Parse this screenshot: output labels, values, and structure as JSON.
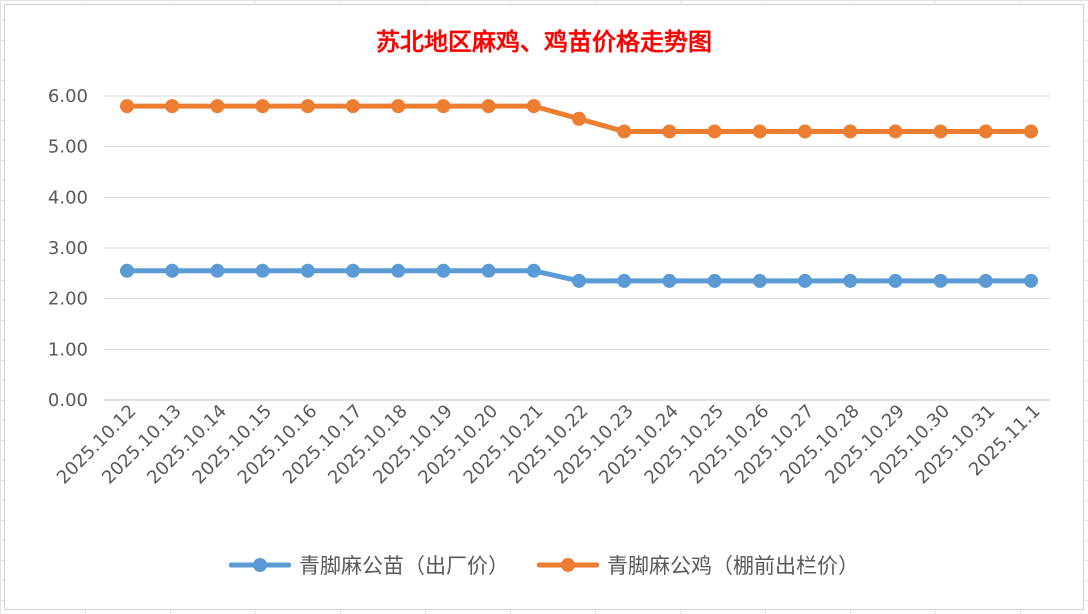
{
  "chart_data": {
    "type": "line",
    "title": "苏北地区麻鸡、鸡苗价格走势图",
    "categories": [
      "2025.10.12",
      "2025.10.13",
      "2025.10.14",
      "2025.10.15",
      "2025.10.16",
      "2025.10.17",
      "2025.10.18",
      "2025.10.19",
      "2025.10.20",
      "2025.10.21",
      "2025.10.22",
      "2025.10.23",
      "2025.10.24",
      "2025.10.25",
      "2025.10.26",
      "2025.10.27",
      "2025.10.28",
      "2025.10.29",
      "2025.10.30",
      "2025.10.31",
      "2025.11.1"
    ],
    "series": [
      {
        "name": "青脚麻公苗（出厂价）",
        "color": "#5B9BD5",
        "values": [
          2.55,
          2.55,
          2.55,
          2.55,
          2.55,
          2.55,
          2.55,
          2.55,
          2.55,
          2.55,
          2.35,
          2.35,
          2.35,
          2.35,
          2.35,
          2.35,
          2.35,
          2.35,
          2.35,
          2.35,
          2.35
        ]
      },
      {
        "name": "青脚麻公鸡（棚前出栏价）",
        "color": "#ED7D31",
        "values": [
          5.8,
          5.8,
          5.8,
          5.8,
          5.8,
          5.8,
          5.8,
          5.8,
          5.8,
          5.8,
          5.55,
          5.3,
          5.3,
          5.3,
          5.3,
          5.3,
          5.3,
          5.3,
          5.3,
          5.3,
          5.3
        ]
      }
    ],
    "yticks": [
      "0.00",
      "1.00",
      "2.00",
      "3.00",
      "4.00",
      "5.00",
      "6.00"
    ],
    "ylim": [
      0,
      6
    ],
    "grid": true,
    "legend": "bottom"
  }
}
